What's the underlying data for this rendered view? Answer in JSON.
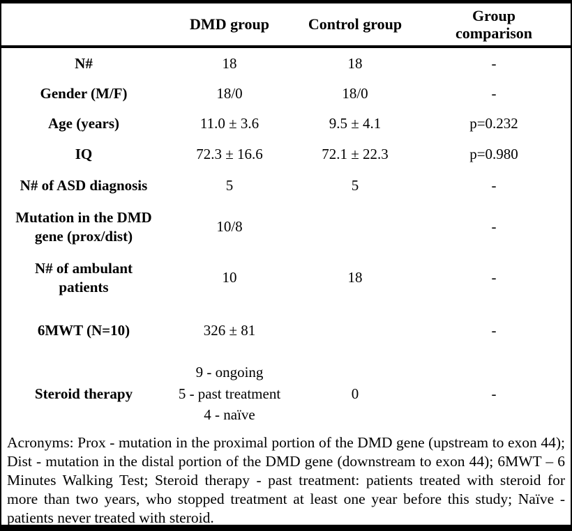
{
  "table": {
    "header": {
      "col_label": "",
      "col_dmd": "DMD group",
      "col_control": "Control group",
      "col_comparison": "Group comparison"
    },
    "rows": [
      {
        "label": "N#",
        "dmd": "18",
        "control": "18",
        "comparison": "-"
      },
      {
        "label": "Gender (M/F)",
        "dmd": "18/0",
        "control": "18/0",
        "comparison": "-"
      },
      {
        "label": "Age (years)",
        "dmd": "11.0 ± 3.6",
        "control": "9.5 ± 4.1",
        "comparison": "p=0.232"
      },
      {
        "label": "IQ",
        "dmd": "72.3 ± 16.6",
        "control": "72.1 ± 22.3",
        "comparison": "p=0.980"
      },
      {
        "label": "N# of ASD diagnosis",
        "dmd": "5",
        "control": "5",
        "comparison": "-"
      },
      {
        "label": "Mutation in the DMD gene (prox/dist)",
        "dmd": "10/8",
        "control": "",
        "comparison": "-"
      },
      {
        "label": "N# of ambulant patients",
        "dmd": "10",
        "control": "18",
        "comparison": "-"
      },
      {
        "label": "6MWT (N=10)",
        "dmd": "326 ± 81",
        "control": "",
        "comparison": "-"
      },
      {
        "label": "Steroid therapy",
        "dmd": "9 - ongoing\n5 - past treatment\n4 - naïve",
        "control": "0",
        "comparison": "-"
      }
    ],
    "footnote": "Acronyms: Prox - mutation in the proximal portion of the DMD gene (upstream to exon 44); Dist - mutation in the distal portion of the DMD gene (downstream to exon 44); 6MWT – 6 Minutes Walking Test; Steroid therapy - past treatment: patients treated with steroid for more than two years, who stopped treatment at least one year before this study; Naïve - patients never treated with steroid."
  },
  "colors": {
    "text": "#000000",
    "background": "#ffffff",
    "border": "#000000"
  }
}
